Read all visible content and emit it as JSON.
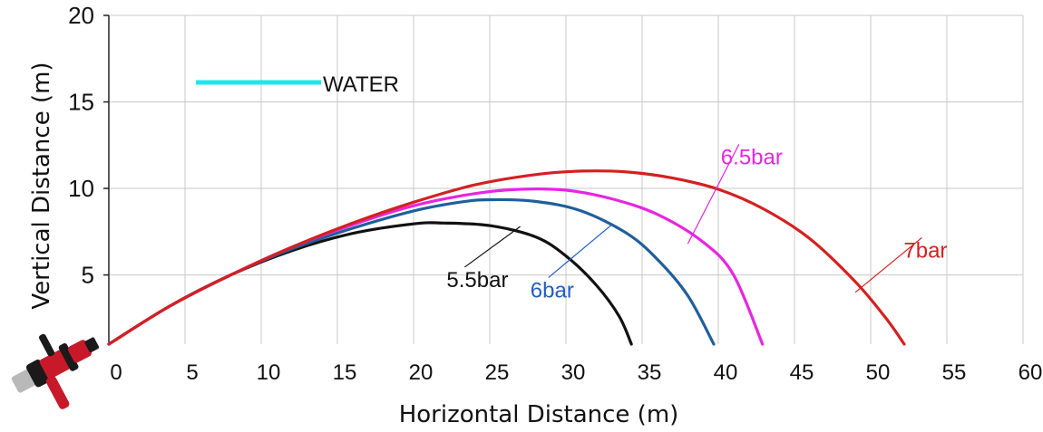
{
  "chart_data": {
    "type": "line",
    "xlabel": "Horizontal Distance (m)",
    "ylabel": "Vertical Distance (m)",
    "xlim": [
      0,
      60
    ],
    "ylim": [
      1,
      20
    ],
    "x_ticks": [
      0,
      5,
      10,
      15,
      20,
      25,
      30,
      35,
      40,
      45,
      50,
      55,
      60
    ],
    "y_ticks": [
      5,
      10,
      15,
      20
    ],
    "grid": true,
    "legend": {
      "position": "top-left",
      "entries": [
        {
          "label": "WATER",
          "color": "#22e5ee"
        }
      ]
    },
    "series": [
      {
        "name": "5.5bar",
        "color": "#111111",
        "x": [
          0,
          4,
          8,
          12,
          16,
          20,
          22,
          25,
          28,
          30,
          32,
          33.5,
          34.3
        ],
        "y": [
          1.0,
          3.2,
          5.0,
          6.4,
          7.4,
          7.95,
          8.0,
          7.85,
          7.2,
          6.1,
          4.4,
          2.6,
          1.0
        ]
      },
      {
        "name": "6bar",
        "color": "#1f5f9b",
        "x": [
          0,
          4,
          8,
          12,
          16,
          20,
          23,
          25,
          28,
          31,
          34,
          36,
          38,
          39.7
        ],
        "y": [
          1.0,
          3.2,
          5.0,
          6.5,
          7.7,
          8.7,
          9.2,
          9.35,
          9.25,
          8.7,
          7.4,
          5.9,
          3.8,
          1.0
        ]
      },
      {
        "name": "6.5bar",
        "color": "#e626e0",
        "x": [
          0,
          4,
          8,
          12,
          16,
          20,
          24,
          27,
          30,
          33,
          36,
          39,
          41,
          42.9
        ],
        "y": [
          1.0,
          3.2,
          5.0,
          6.6,
          7.9,
          9.0,
          9.7,
          9.95,
          9.9,
          9.4,
          8.5,
          6.9,
          5.0,
          1.0
        ]
      },
      {
        "name": "7bar",
        "color": "#d42020",
        "x": [
          0,
          4,
          8,
          12,
          16,
          20,
          24,
          28,
          31,
          34,
          37,
          40,
          43,
          46,
          49,
          51,
          52.2
        ],
        "y": [
          1.0,
          3.2,
          5.0,
          6.6,
          8.0,
          9.2,
          10.2,
          10.8,
          11.0,
          10.95,
          10.6,
          9.95,
          8.8,
          7.1,
          4.6,
          2.5,
          1.0
        ]
      }
    ],
    "annotations": [
      {
        "text": "5.5bar",
        "color": "#111111",
        "point": [
          27,
          7.8
        ],
        "label_at": [
          23,
          4.3
        ]
      },
      {
        "text": "6bar",
        "color": "#1f5fbf",
        "point": [
          33,
          7.9
        ],
        "label_at": [
          28.5,
          3.7
        ]
      },
      {
        "text": "6.5bar",
        "color": "#e626e0",
        "point": [
          38,
          6.8
        ],
        "label_at": [
          41,
          11.4
        ]
      },
      {
        "text": "7bar",
        "color": "#d42020",
        "point": [
          49,
          4.0
        ],
        "label_at": [
          53,
          6.0
        ]
      }
    ]
  },
  "colors": {
    "grid": "#c8c8c8",
    "axis": "#222222",
    "nozzle_body": "#c8192a",
    "nozzle_dark": "#1a1a1a",
    "nozzle_metal": "#b9b9b9"
  },
  "icons": {
    "nozzle": "fire-hose-nozzle-icon"
  }
}
